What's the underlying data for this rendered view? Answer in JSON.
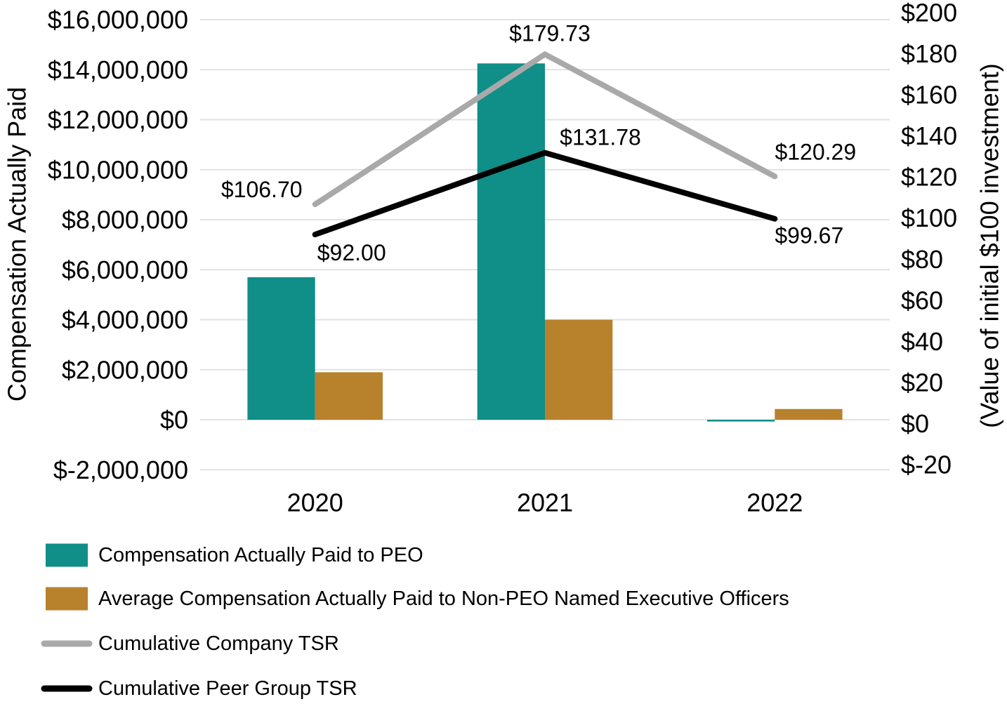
{
  "chart_data": {
    "type": "combo-bar-line",
    "categories": [
      "2020",
      "2021",
      "2022"
    ],
    "bar_series": [
      {
        "name": "Compensation Actually Paid to PEO",
        "color": "#108E88",
        "axis": "left",
        "values": [
          5700000,
          14250000,
          -50000
        ]
      },
      {
        "name": "Average Compensation Actually Paid to Non-PEO Named Executive Officers",
        "color": "#B8812C",
        "axis": "left",
        "values": [
          1900000,
          4000000,
          430000
        ]
      }
    ],
    "line_series": [
      {
        "name": "Cumulative Company TSR",
        "color": "#A9A9A9",
        "axis": "right",
        "values": [
          106.7,
          179.73,
          120.29
        ],
        "point_labels": [
          "$106.70",
          "$179.73",
          "$120.29"
        ]
      },
      {
        "name": "Cumulative Peer Group TSR",
        "color": "#000000",
        "axis": "right",
        "values": [
          92.0,
          131.78,
          99.67
        ],
        "point_labels": [
          "$92.00",
          "$131.78",
          "$99.67"
        ]
      }
    ],
    "left_axis": {
      "title": "Compensation Actually Paid",
      "min": -2000000,
      "max": 16000000,
      "step": 2000000,
      "tick_labels": [
        "$16,000,000",
        "$14,000,000",
        "$12,000,000",
        "$10,000,000",
        "$8,000,000",
        "$6,000,000",
        "$4,000,000",
        "$2,000,000",
        "$0",
        "$-2,000,000"
      ]
    },
    "right_axis": {
      "title": "(Value of initial $100 investment)",
      "min": -20,
      "max": 200,
      "step": 20,
      "tick_labels": [
        "$200",
        "$180",
        "$160",
        "$140",
        "$120",
        "$100",
        "$80",
        "$60",
        "$40",
        "$20",
        "$0",
        "$-20"
      ]
    },
    "grid": true,
    "gridline_color": "#E2E2E2",
    "legend_position": "bottom-left"
  }
}
